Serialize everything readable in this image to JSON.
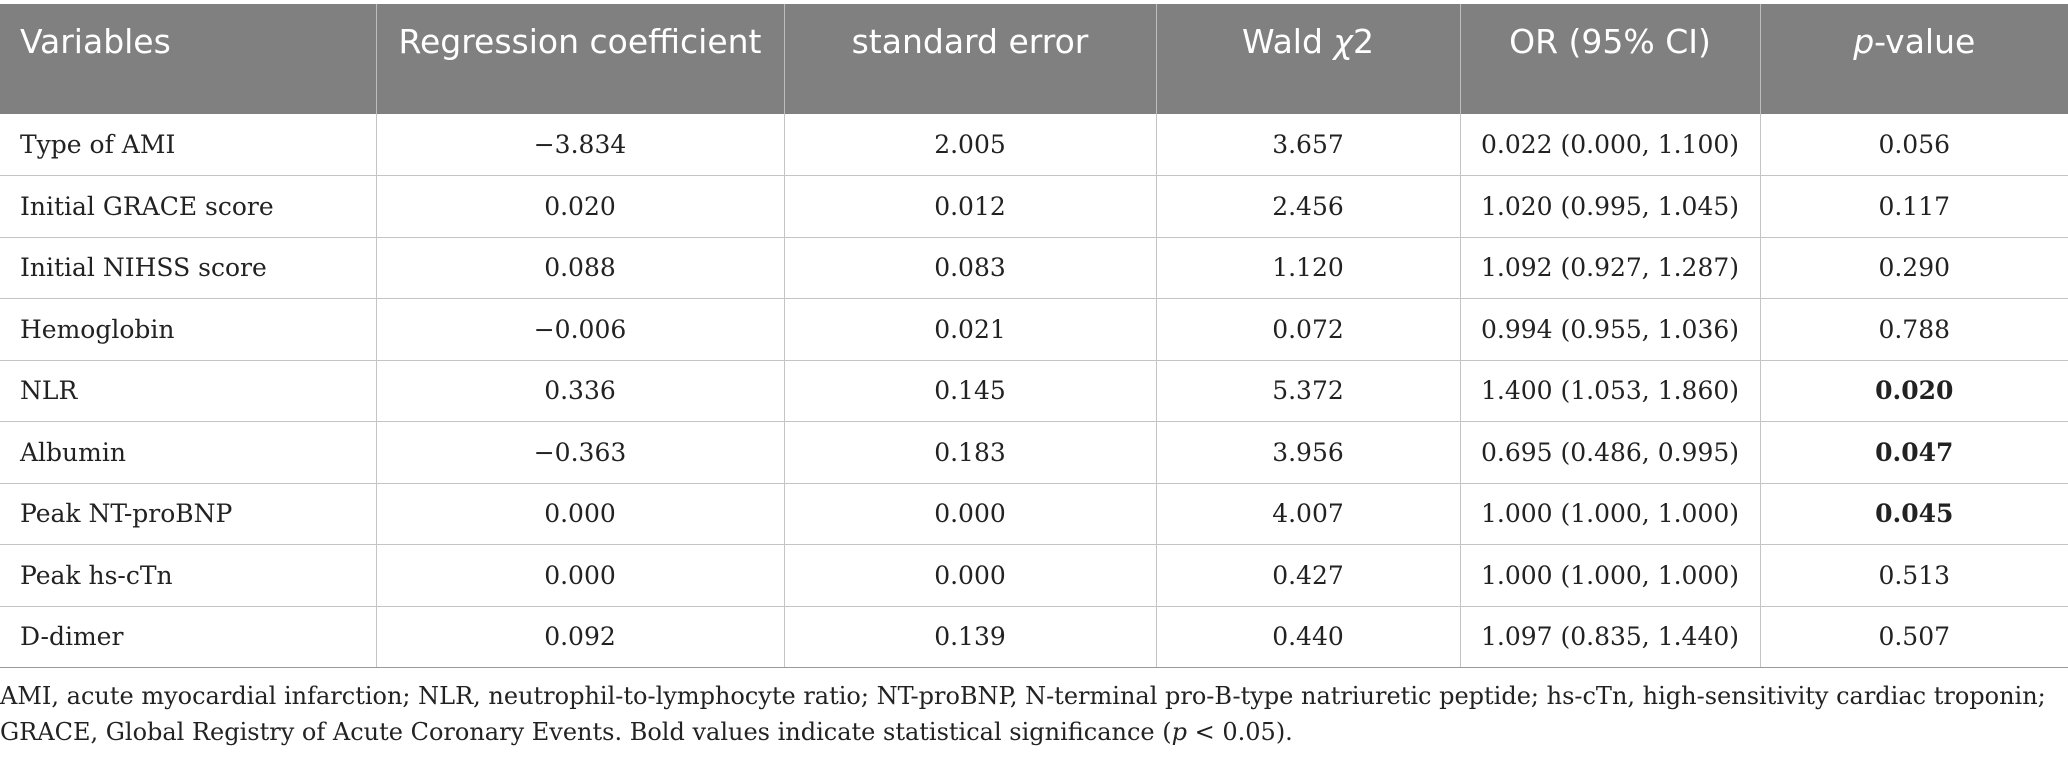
{
  "table": {
    "headers": [
      {
        "text": "Variables",
        "italic_prefix": "",
        "suffix": ""
      },
      {
        "text": "Regression coefficient",
        "italic_prefix": "",
        "suffix": ""
      },
      {
        "text": "standard error",
        "italic_prefix": "",
        "suffix": ""
      },
      {
        "text": "Wald ",
        "italic_prefix": "χ",
        "suffix": "2"
      },
      {
        "text": "OR (95% CI)",
        "italic_prefix": "",
        "suffix": ""
      },
      {
        "text": "",
        "italic_prefix": "p",
        "suffix": "-value"
      }
    ],
    "header_labels": {
      "variables": "Variables",
      "regression_coefficient": "Regression coefficient",
      "standard_error": "standard error",
      "wald_prefix": "Wald ",
      "wald_symbol": "χ",
      "wald_suffix": "2",
      "or_ci": "OR (95% CI)",
      "p_symbol": "p",
      "p_suffix": "-value"
    },
    "rows": [
      {
        "variable": "Type of AMI",
        "coef": "−3.834",
        "se": "2.005",
        "wald": "3.657",
        "or_ci": "0.022 (0.000, 1.100)",
        "p": "0.056",
        "significant": false
      },
      {
        "variable": "Initial GRACE score",
        "coef": "0.020",
        "se": "0.012",
        "wald": "2.456",
        "or_ci": "1.020 (0.995, 1.045)",
        "p": "0.117",
        "significant": false
      },
      {
        "variable": "Initial NIHSS score",
        "coef": "0.088",
        "se": "0.083",
        "wald": "1.120",
        "or_ci": "1.092 (0.927, 1.287)",
        "p": "0.290",
        "significant": false
      },
      {
        "variable": "Hemoglobin",
        "coef": "−0.006",
        "se": "0.021",
        "wald": "0.072",
        "or_ci": "0.994 (0.955, 1.036)",
        "p": "0.788",
        "significant": false
      },
      {
        "variable": "NLR",
        "coef": "0.336",
        "se": "0.145",
        "wald": "5.372",
        "or_ci": "1.400 (1.053, 1.860)",
        "p": "0.020",
        "significant": true
      },
      {
        "variable": "Albumin",
        "coef": "−0.363",
        "se": "0.183",
        "wald": "3.956",
        "or_ci": "0.695 (0.486, 0.995)",
        "p": "0.047",
        "significant": true
      },
      {
        "variable": "Peak NT-proBNP",
        "coef": "0.000",
        "se": "0.000",
        "wald": "4.007",
        "or_ci": "1.000 (1.000, 1.000)",
        "p": "0.045",
        "significant": true
      },
      {
        "variable": "Peak hs-cTn",
        "coef": "0.000",
        "se": "0.000",
        "wald": "0.427",
        "or_ci": "1.000 (1.000, 1.000)",
        "p": "0.513",
        "significant": false
      },
      {
        "variable": "D-dimer",
        "coef": "0.092",
        "se": "0.139",
        "wald": "0.440",
        "or_ci": "1.097 (0.835, 1.440)",
        "p": "0.507",
        "significant": false
      }
    ]
  },
  "footnote": {
    "text_before": "AMI, acute myocardial infarction; NLR, neutrophil-to-lymphocyte ratio; NT-proBNP, N-terminal pro-B-type natriuretic peptide; hs-cTn, high-sensitivity cardiac troponin; GRACE, Global Registry of Acute Coronary Events. Bold values indicate statistical significance (",
    "italic": "p",
    "text_after": " < 0.05)."
  },
  "colors": {
    "header_bg": "#808080",
    "header_text": "#ffffff",
    "grid_line": "#c4c4c4",
    "body_text": "#222222"
  }
}
